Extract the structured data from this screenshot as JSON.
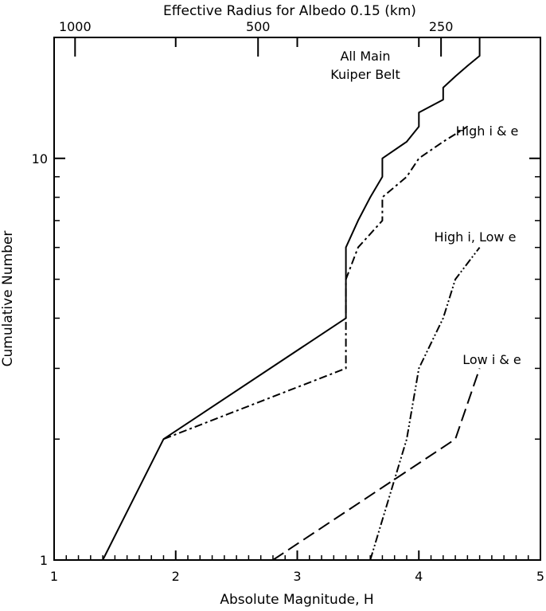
{
  "chart_data": {
    "type": "line",
    "xlabel": "Absolute Magnitude, H",
    "ylabel": "Cumulative Number",
    "top_axis_label": "Effective Radius for Albedo 0.15 (km)",
    "xlim": [
      1,
      5
    ],
    "ylim": [
      1,
      20
    ],
    "yscale": "log",
    "grid": false,
    "x_ticks": [
      1,
      2,
      3,
      4,
      5
    ],
    "x_tick_labels": [
      "1",
      "2",
      "3",
      "4",
      "5"
    ],
    "y_ticks": [
      1,
      10
    ],
    "y_tick_labels": [
      "1",
      "10"
    ],
    "top_ticks": [
      1000,
      500,
      250
    ],
    "top_tick_labels": [
      "1000",
      "500",
      "250"
    ],
    "series": [
      {
        "name": "All Main Kuiper Belt",
        "label_lines": [
          "All Main",
          "Kuiper Belt"
        ],
        "style": "solid",
        "points": [
          [
            1.4,
            1
          ],
          [
            1.9,
            2
          ],
          [
            3.4,
            4
          ],
          [
            3.4,
            6
          ],
          [
            3.5,
            7
          ],
          [
            3.6,
            8
          ],
          [
            3.7,
            9
          ],
          [
            3.7,
            10
          ],
          [
            3.9,
            11
          ],
          [
            4.0,
            12
          ],
          [
            4.0,
            13
          ],
          [
            4.2,
            14
          ],
          [
            4.2,
            15
          ],
          [
            4.3,
            16
          ],
          [
            4.4,
            17
          ],
          [
            4.5,
            18
          ],
          [
            4.5,
            19
          ],
          [
            4.5,
            20
          ]
        ]
      },
      {
        "name": "High i & e",
        "label_lines": [
          "High i & e"
        ],
        "style": "dashdot",
        "points": [
          [
            1.9,
            2
          ],
          [
            3.4,
            3
          ],
          [
            3.4,
            5
          ],
          [
            3.5,
            6
          ],
          [
            3.7,
            7
          ],
          [
            3.7,
            8
          ],
          [
            3.9,
            9
          ],
          [
            4.0,
            10
          ],
          [
            4.2,
            11
          ],
          [
            4.4,
            12
          ]
        ]
      },
      {
        "name": "High i, Low e",
        "label_lines": [
          "High i, Low e"
        ],
        "style": "dashdotdot",
        "points": [
          [
            3.6,
            1
          ],
          [
            3.9,
            2
          ],
          [
            4.0,
            3
          ],
          [
            4.2,
            4
          ],
          [
            4.3,
            5
          ],
          [
            4.5,
            6
          ]
        ]
      },
      {
        "name": "Low i & e",
        "label_lines": [
          "Low i & e"
        ],
        "style": "longdash",
        "points": [
          [
            2.8,
            1
          ],
          [
            4.3,
            2
          ],
          [
            4.5,
            3
          ]
        ]
      }
    ]
  }
}
